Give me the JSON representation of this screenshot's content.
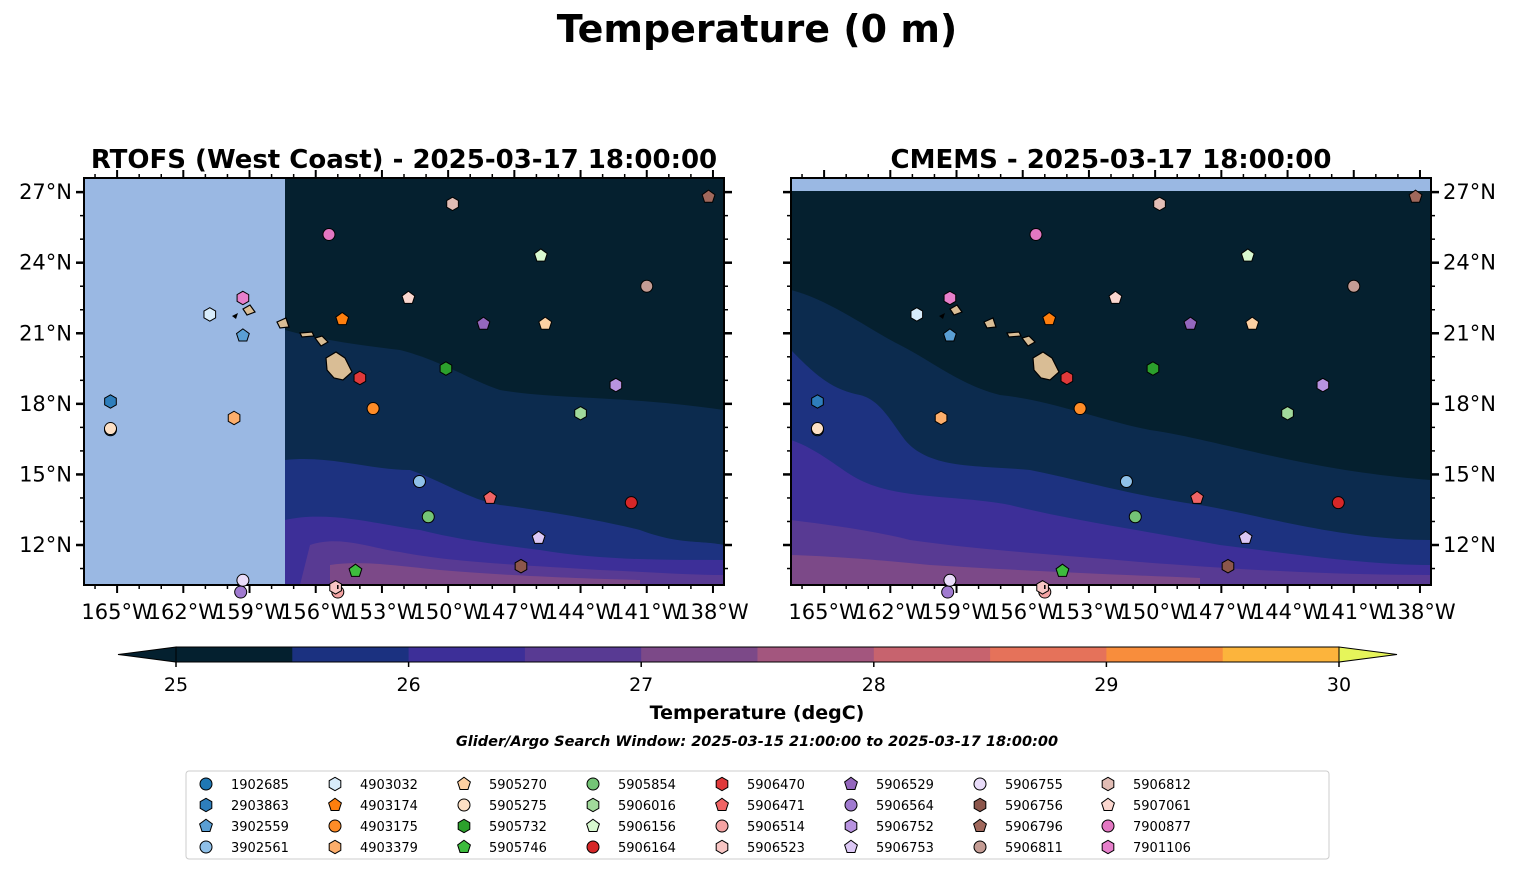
{
  "suptitle": "Temperature (0 m)",
  "chart_data": {
    "type": "scatter",
    "suptitle": "Temperature (0 m)",
    "x_range": [
      -166.5,
      -137.5
    ],
    "y_range": [
      10.3,
      27.6
    ],
    "xticks": [
      -165,
      -162,
      -159,
      -156,
      -153,
      -150,
      -147,
      -144,
      -141,
      -138
    ],
    "xtick_labels": [
      "165°W",
      "162°W",
      "159°W",
      "156°W",
      "153°W",
      "150°W",
      "147°W",
      "144°W",
      "141°W",
      "138°W"
    ],
    "yticks": [
      12,
      15,
      18,
      21,
      24,
      27
    ],
    "ytick_labels": [
      "12°N",
      "15°N",
      "18°N",
      "21°N",
      "24°N",
      "27°N"
    ],
    "grid": false,
    "panels": [
      {
        "title": "RTOFS (West Coast) - 2025-03-17 18:00:00",
        "model": "RTOFS",
        "ytick_side": "left"
      },
      {
        "title": "CMEMS - 2025-03-17 18:00:00",
        "model": "CMEMS",
        "ytick_side": "right"
      }
    ],
    "colorbar": {
      "label": "Temperature (degC)",
      "min": 25,
      "max": 30,
      "step": 0.5,
      "extend": "both",
      "ticks": [
        25,
        26,
        27,
        28,
        29,
        30
      ],
      "tick_labels": [
        "25",
        "26",
        "27",
        "28",
        "29",
        "30"
      ],
      "colors": [
        "#04202f",
        "#1b3180",
        "#3d2f98",
        "#583a93",
        "#7c4988",
        "#a3567e",
        "#c7636e",
        "#e5725a",
        "#f88d3c",
        "#fcb43c",
        "#f9d443"
      ],
      "under_color": "#04202f",
      "over_color": "#e6f55a"
    },
    "search_window": "Glider/Argo Search Window: 2025-03-15 21:00:00 to 2025-03-17 18:00:00",
    "legend_placement": "bottom-center",
    "floats": [
      {
        "id": "1902685",
        "lon": -165.3,
        "lat": 16.9,
        "marker": "circle",
        "color": "#1f77b4"
      },
      {
        "id": "2903863",
        "lon": -165.3,
        "lat": 18.1,
        "marker": "hexagon",
        "color": "#2e7ebc"
      },
      {
        "id": "3902559",
        "lon": -159.3,
        "lat": 20.9,
        "marker": "pentagon",
        "color": "#5a9fd4"
      },
      {
        "id": "3902561",
        "lon": -151.3,
        "lat": 14.7,
        "marker": "circle",
        "color": "#8fc0e8"
      },
      {
        "id": "4903032",
        "lon": -160.8,
        "lat": 21.8,
        "marker": "hexagon",
        "color": "#d8ecfb"
      },
      {
        "id": "4903174",
        "lon": -154.8,
        "lat": 21.6,
        "marker": "pentagon",
        "color": "#ff7f0e"
      },
      {
        "id": "4903175",
        "lon": -153.4,
        "lat": 17.8,
        "marker": "circle",
        "color": "#ff8c27"
      },
      {
        "id": "4903379",
        "lon": -159.7,
        "lat": 17.4,
        "marker": "hexagon",
        "color": "#fdae6b"
      },
      {
        "id": "5905270",
        "lon": -145.6,
        "lat": 21.4,
        "marker": "pentagon",
        "color": "#fdd0a2"
      },
      {
        "id": "5905275",
        "lon": -165.3,
        "lat": 16.95,
        "marker": "circle",
        "color": "#fde0c5"
      },
      {
        "id": "5905732",
        "lon": -150.1,
        "lat": 19.5,
        "marker": "hexagon",
        "color": "#2ca02c"
      },
      {
        "id": "5905746",
        "lon": -154.2,
        "lat": 10.9,
        "marker": "pentagon",
        "color": "#3dbb3d"
      },
      {
        "id": "5905854",
        "lon": -150.9,
        "lat": 13.2,
        "marker": "circle",
        "color": "#74c476"
      },
      {
        "id": "5906016",
        "lon": -144.0,
        "lat": 17.6,
        "marker": "hexagon",
        "color": "#a1d99b"
      },
      {
        "id": "5906156",
        "lon": -145.8,
        "lat": 24.3,
        "marker": "pentagon",
        "color": "#d8f8d0"
      },
      {
        "id": "5906164",
        "lon": -141.7,
        "lat": 13.8,
        "marker": "circle",
        "color": "#d62728"
      },
      {
        "id": "5906470",
        "lon": -154.0,
        "lat": 19.1,
        "marker": "hexagon",
        "color": "#e0393a"
      },
      {
        "id": "5906471",
        "lon": -148.1,
        "lat": 14.0,
        "marker": "pentagon",
        "color": "#f06465"
      },
      {
        "id": "5906514",
        "lon": -155.0,
        "lat": 10.0,
        "marker": "circle",
        "color": "#f4a3a3"
      },
      {
        "id": "5906523",
        "lon": -155.1,
        "lat": 10.2,
        "marker": "hexagon",
        "color": "#f8c6c4"
      },
      {
        "id": "5906529",
        "lon": -148.4,
        "lat": 21.4,
        "marker": "pentagon",
        "color": "#9467bd"
      },
      {
        "id": "5906564",
        "lon": -159.4,
        "lat": 10.0,
        "marker": "circle",
        "color": "#a07ad0"
      },
      {
        "id": "5906752",
        "lon": -142.4,
        "lat": 18.8,
        "marker": "hexagon",
        "color": "#b893e0"
      },
      {
        "id": "5906753",
        "lon": -145.9,
        "lat": 12.3,
        "marker": "pentagon",
        "color": "#dcc8f5"
      },
      {
        "id": "5906755",
        "lon": -159.3,
        "lat": 10.5,
        "marker": "circle",
        "color": "#e9dcf9"
      },
      {
        "id": "5906756",
        "lon": -146.7,
        "lat": 11.1,
        "marker": "hexagon",
        "color": "#8c564b"
      },
      {
        "id": "5906796",
        "lon": -138.2,
        "lat": 26.8,
        "marker": "pentagon",
        "color": "#a0685c"
      },
      {
        "id": "5906811",
        "lon": -141.0,
        "lat": 23.0,
        "marker": "circle",
        "color": "#c49c94"
      },
      {
        "id": "5906812",
        "lon": -149.8,
        "lat": 26.5,
        "marker": "hexagon",
        "color": "#e2bdb5"
      },
      {
        "id": "5907061",
        "lon": -151.8,
        "lat": 22.5,
        "marker": "pentagon",
        "color": "#fbd7cf"
      },
      {
        "id": "7900877",
        "lon": -155.4,
        "lat": 25.2,
        "marker": "circle",
        "color": "#e377c2"
      },
      {
        "id": "7901106",
        "lon": -159.3,
        "lat": 22.5,
        "marker": "hexagon",
        "color": "#e77fcb"
      }
    ]
  }
}
